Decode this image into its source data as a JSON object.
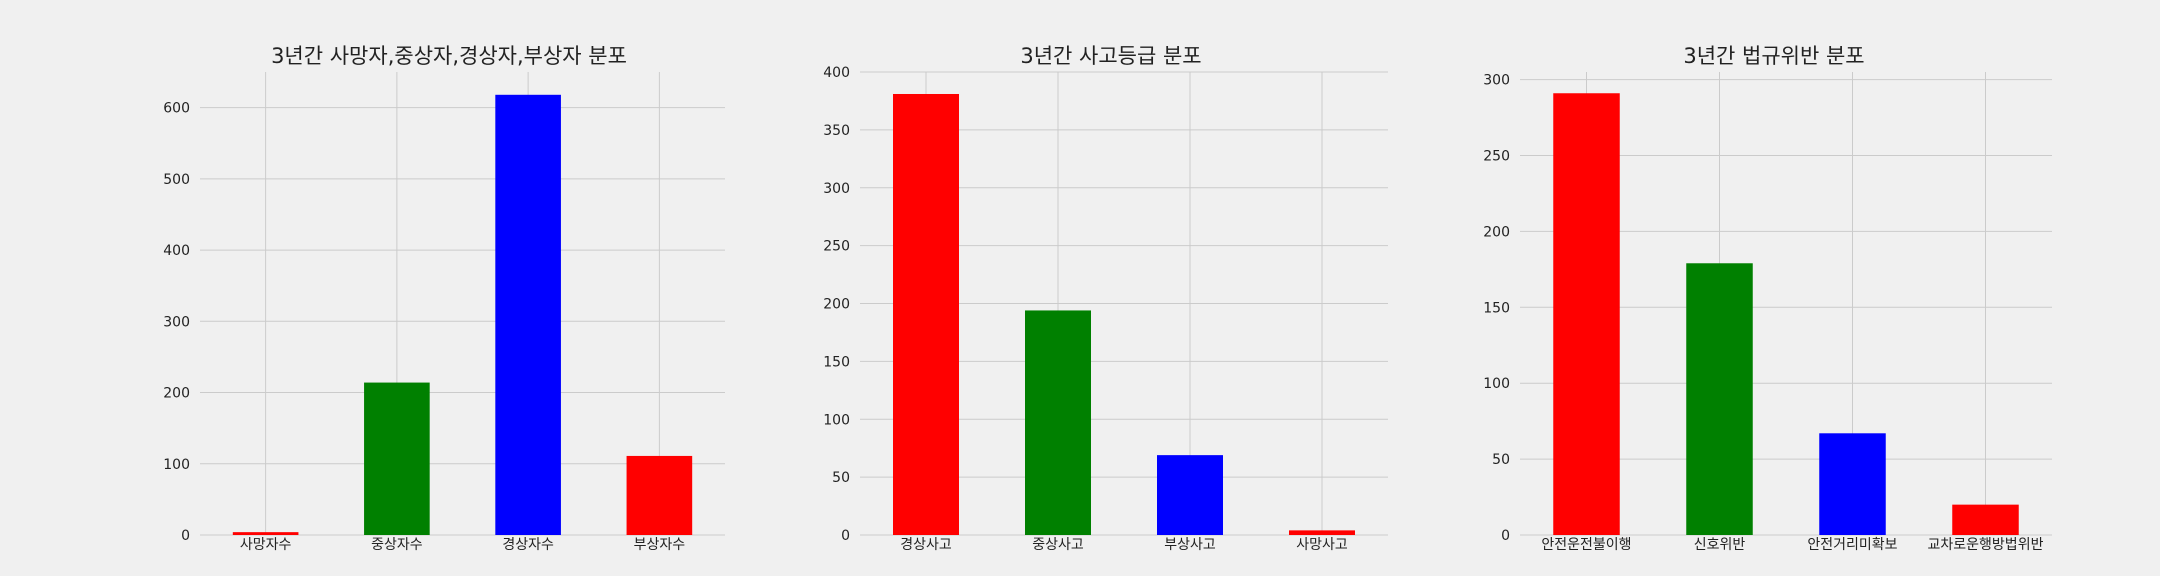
{
  "chart_data": [
    {
      "type": "bar",
      "title": "3년간 사망자,중상자,경상자,부상자 분포",
      "categories": [
        "사망자수",
        "중상자수",
        "경상자수",
        "부상자수"
      ],
      "values": [
        4,
        214,
        618,
        111
      ],
      "colors": [
        "#ff0000",
        "#008000",
        "#0000ff",
        "#ff0000"
      ],
      "ylim": [
        0,
        650
      ],
      "yticks": [
        0,
        100,
        200,
        300,
        400,
        500,
        600
      ],
      "xlabel": "",
      "ylabel": "",
      "grid": true,
      "legend": "none"
    },
    {
      "type": "bar",
      "title": "3년간 사고등급 분포",
      "categories": [
        "경상사고",
        "중상사고",
        "부상사고",
        "사망사고"
      ],
      "values": [
        381,
        194,
        69,
        4
      ],
      "colors": [
        "#ff0000",
        "#008000",
        "#0000ff",
        "#ff0000"
      ],
      "ylim": [
        0,
        400
      ],
      "yticks": [
        0,
        50,
        100,
        150,
        200,
        250,
        300,
        350,
        400
      ],
      "xlabel": "",
      "ylabel": "",
      "grid": true,
      "legend": "none"
    },
    {
      "type": "bar",
      "title": "3년간 법규위반 분포",
      "categories": [
        "안전운전불이행",
        "신호위반",
        "안전거리미확보",
        "교차로운행방법위반"
      ],
      "values": [
        291,
        179,
        67,
        20
      ],
      "colors": [
        "#ff0000",
        "#008000",
        "#0000ff",
        "#ff0000"
      ],
      "ylim": [
        0,
        305
      ],
      "yticks": [
        0,
        50,
        100,
        150,
        200,
        250,
        300
      ],
      "xlabel": "",
      "ylabel": "",
      "grid": true,
      "legend": "none"
    }
  ]
}
